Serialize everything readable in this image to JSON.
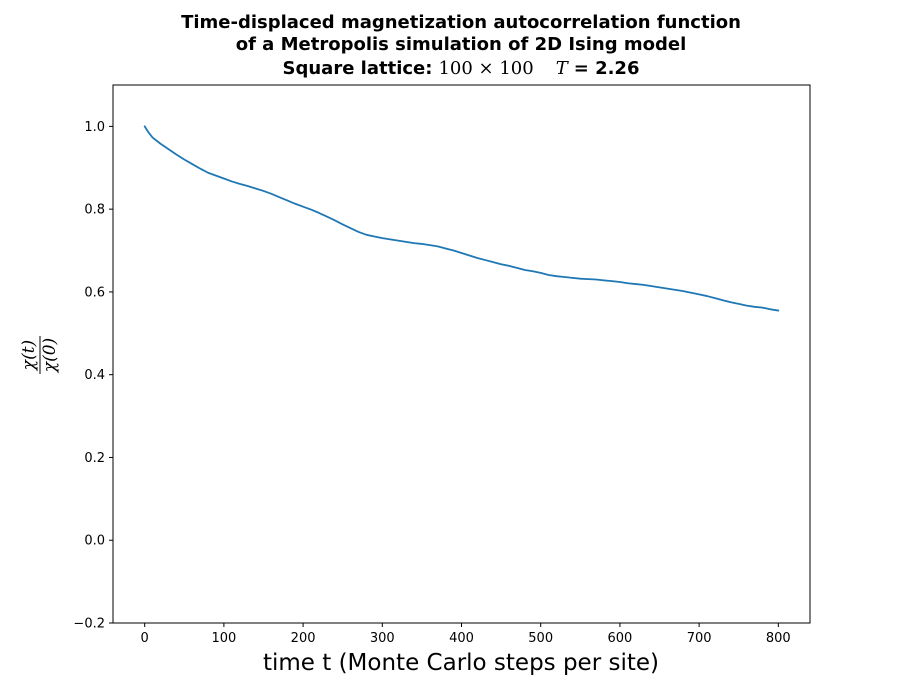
{
  "chart_data": {
    "type": "line",
    "title_lines": [
      "Time-displaced magnetization autocorrelation function",
      "of a Metropolis simulation of 2D Ising model"
    ],
    "subtitle": {
      "prefix": "Square lattice:",
      "lattice_size": "100 × 100",
      "temp_symbol": "T",
      "temp_value": "= 2.26"
    },
    "xlabel": "time t (Monte Carlo steps per site)",
    "ylabel": {
      "numerator": "χ(t)",
      "denominator": "χ(0)"
    },
    "xlim": [
      -40,
      840
    ],
    "ylim": [
      -0.2,
      1.1
    ],
    "xticks": [
      0,
      100,
      200,
      300,
      400,
      500,
      600,
      700,
      800
    ],
    "yticks": [
      -0.2,
      0.0,
      0.2,
      0.4,
      0.6,
      0.8,
      1.0
    ],
    "ytick_labels": [
      "−0.2",
      "0.0",
      "0.2",
      "0.4",
      "0.6",
      "0.8",
      "1.0"
    ],
    "grid": false,
    "series": [
      {
        "color": "#1f77b4",
        "x": [
          0,
          5,
          10,
          20,
          30,
          40,
          50,
          60,
          70,
          80,
          90,
          100,
          110,
          120,
          130,
          140,
          150,
          160,
          170,
          180,
          190,
          200,
          210,
          220,
          230,
          240,
          250,
          260,
          270,
          280,
          290,
          300,
          310,
          320,
          330,
          340,
          350,
          360,
          370,
          380,
          390,
          400,
          410,
          420,
          430,
          440,
          450,
          460,
          470,
          480,
          490,
          500,
          510,
          520,
          530,
          540,
          550,
          560,
          570,
          580,
          590,
          600,
          610,
          620,
          630,
          640,
          650,
          660,
          670,
          680,
          690,
          700,
          710,
          720,
          730,
          740,
          750,
          760,
          770,
          780,
          790,
          800
        ],
        "y": [
          1.0,
          0.985,
          0.973,
          0.958,
          0.945,
          0.932,
          0.92,
          0.909,
          0.898,
          0.888,
          0.881,
          0.874,
          0.867,
          0.861,
          0.856,
          0.85,
          0.844,
          0.837,
          0.829,
          0.821,
          0.813,
          0.806,
          0.799,
          0.791,
          0.782,
          0.773,
          0.763,
          0.754,
          0.745,
          0.738,
          0.734,
          0.73,
          0.727,
          0.724,
          0.721,
          0.718,
          0.716,
          0.713,
          0.71,
          0.705,
          0.7,
          0.694,
          0.688,
          0.682,
          0.677,
          0.672,
          0.667,
          0.663,
          0.658,
          0.653,
          0.65,
          0.646,
          0.641,
          0.638,
          0.636,
          0.634,
          0.632,
          0.631,
          0.63,
          0.628,
          0.626,
          0.624,
          0.621,
          0.619,
          0.617,
          0.614,
          0.611,
          0.608,
          0.605,
          0.602,
          0.598,
          0.594,
          0.59,
          0.585,
          0.58,
          0.575,
          0.571,
          0.567,
          0.564,
          0.562,
          0.558,
          0.555
        ]
      }
    ]
  }
}
